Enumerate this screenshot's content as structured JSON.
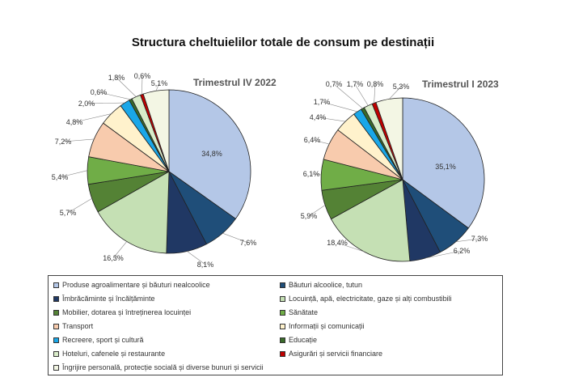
{
  "title": "Structura cheltuielilor totale de consum pe destinații",
  "chart_data": [
    {
      "type": "pie",
      "title": "Trimestrul IV 2022",
      "labels": [
        "Produse agroalimentare și băuturi nealcoolice",
        "Băuturi alcoolice, tutun",
        "Îmbrăcăminte și încălțăminte",
        "Locuință, apă, electricitate, gaze și alți combustibili",
        "Mobilier, dotarea și întreținerea locuinței",
        "Sănătate",
        "Transport",
        "Informații și comunicații",
        "Recreere, sport și cultură",
        "Educație",
        "Hoteluri, cafenele și restaurante",
        "Asigurări și servicii financiare",
        "Îngrijire personală, protecție socială și diverse bunuri și servicii"
      ],
      "values": [
        34.8,
        7.6,
        8.1,
        16.3,
        5.7,
        5.4,
        7.2,
        4.8,
        2.0,
        0.6,
        1.8,
        0.6,
        5.1
      ],
      "value_labels": [
        "34,8%",
        "7,6%",
        "8,1%",
        "16,3%",
        "5,7%",
        "5,4%",
        "7,2%",
        "4,8%",
        "2,0%",
        "0,6%",
        "1,8%",
        "0,6%",
        "5,1%"
      ]
    },
    {
      "type": "pie",
      "title": "Trimestrul I 2023",
      "labels": [
        "Produse agroalimentare și băuturi nealcoolice",
        "Băuturi alcoolice, tutun",
        "Îmbrăcăminte și încălțăminte",
        "Locuință, apă, electricitate, gaze și alți combustibili",
        "Mobilier, dotarea și întreținerea locuinței",
        "Sănătate",
        "Transport",
        "Informații și comunicații",
        "Recreere, sport și cultură",
        "Educație",
        "Hoteluri, cafenele și restaurante",
        "Asigurări și servicii financiare",
        "Îngrijire personală, protecție socială și diverse bunuri și servicii"
      ],
      "values": [
        35.1,
        7.3,
        6.2,
        18.4,
        5.9,
        6.1,
        6.4,
        4.4,
        1.7,
        0.7,
        1.7,
        0.8,
        5.3
      ],
      "value_labels": [
        "35,1%",
        "7,3%",
        "6,2%",
        "18,4%",
        "5,9%",
        "6,1%",
        "6,4%",
        "4,4%",
        "1,7%",
        "0,7%",
        "1,7%",
        "0,8%",
        "5,3%"
      ]
    }
  ],
  "legend": [
    {
      "label": "Produse agroalimentare și băuturi nealcoolice",
      "color": "#b4c7e7"
    },
    {
      "label": "Băuturi alcoolice, tutun",
      "color": "#1f4e79"
    },
    {
      "label": "Îmbrăcăminte și încălțăminte",
      "color": "#203864"
    },
    {
      "label": "Locuință, apă, electricitate, gaze și alți combustibili",
      "color": "#c5e0b4"
    },
    {
      "label": "Mobilier, dotarea și întreținerea locuinței",
      "color": "#548235"
    },
    {
      "label": "Sănătate",
      "color": "#70ad47"
    },
    {
      "label": "Transport",
      "color": "#f8cbad"
    },
    {
      "label": "Informații și comunicații",
      "color": "#fff2cc"
    },
    {
      "label": "Recreere, sport și cultură",
      "color": "#1aa7e8"
    },
    {
      "label": "Educație",
      "color": "#3a6b2a"
    },
    {
      "label": "Hoteluri, cafenele și restaurante",
      "color": "#d9ecc9"
    },
    {
      "label": "Asigurări și servicii financiare",
      "color": "#c00000"
    },
    {
      "label": "Îngrijire personală, protecție socială și diverse bunuri și servicii",
      "color": "#f3f6e4"
    }
  ]
}
